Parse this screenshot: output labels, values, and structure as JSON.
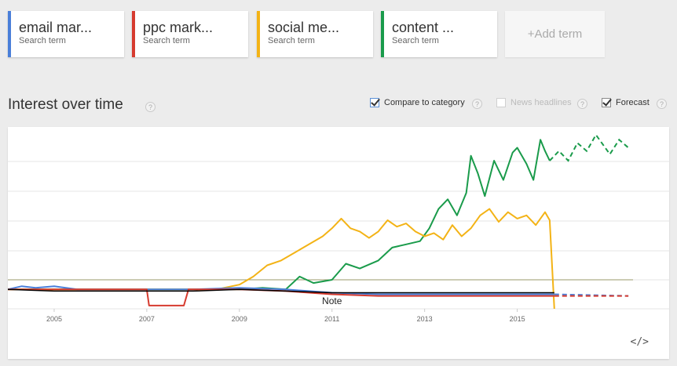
{
  "terms": [
    {
      "label": "email mar...",
      "sub": "Search term",
      "color": "#4a7fd9"
    },
    {
      "label": "ppc mark...",
      "sub": "Search term",
      "color": "#d63b2f"
    },
    {
      "label": "social me...",
      "sub": "Search term",
      "color": "#f3b316"
    },
    {
      "label": "content ...",
      "sub": "Search term",
      "color": "#1a9b4b"
    }
  ],
  "add_term": "+Add term",
  "section": {
    "title": "Interest over time",
    "help": "?"
  },
  "options": {
    "compare": {
      "label": "Compare to category",
      "checked": true
    },
    "news": {
      "label": "News headlines",
      "checked": false
    },
    "forecast": {
      "label": "Forecast",
      "checked": true
    }
  },
  "chart_data": {
    "type": "line",
    "x_ticks": [
      "2005",
      "2007",
      "2009",
      "2011",
      "2013",
      "2015"
    ],
    "annotation": "Note",
    "series": [
      {
        "color": "#1a9b4b",
        "points": [
          [
            2004.0,
            12
          ],
          [
            2006,
            12
          ],
          [
            2008,
            12
          ],
          [
            2009.0,
            12
          ],
          [
            2009.5,
            13
          ],
          [
            2010.0,
            12
          ],
          [
            2010.3,
            20
          ],
          [
            2010.6,
            16
          ],
          [
            2011.0,
            18
          ],
          [
            2011.3,
            28
          ],
          [
            2011.6,
            25
          ],
          [
            2012.0,
            30
          ],
          [
            2012.3,
            38
          ],
          [
            2012.6,
            40
          ],
          [
            2012.9,
            42
          ],
          [
            2013.1,
            50
          ],
          [
            2013.3,
            62
          ],
          [
            2013.5,
            68
          ],
          [
            2013.7,
            58
          ],
          [
            2013.9,
            72
          ],
          [
            2014.0,
            95
          ],
          [
            2014.15,
            84
          ],
          [
            2014.3,
            70
          ],
          [
            2014.5,
            92
          ],
          [
            2014.7,
            80
          ],
          [
            2014.9,
            97
          ],
          [
            2015.0,
            100
          ],
          [
            2015.2,
            90
          ],
          [
            2015.35,
            80
          ],
          [
            2015.5,
            105
          ],
          [
            2015.6,
            98
          ],
          [
            2015.7,
            92
          ]
        ],
        "forecast": [
          [
            2015.7,
            92
          ],
          [
            2015.9,
            98
          ],
          [
            2016.1,
            92
          ],
          [
            2016.3,
            103
          ],
          [
            2016.5,
            98
          ],
          [
            2016.7,
            108
          ],
          [
            2016.9,
            100
          ],
          [
            2017.0,
            96
          ],
          [
            2017.2,
            105
          ],
          [
            2017.4,
            100
          ]
        ]
      },
      {
        "color": "#f3b316",
        "points": [
          [
            2004.0,
            12
          ],
          [
            2008.5,
            12
          ],
          [
            2009.0,
            15
          ],
          [
            2009.3,
            20
          ],
          [
            2009.6,
            27
          ],
          [
            2009.9,
            30
          ],
          [
            2010.2,
            35
          ],
          [
            2010.5,
            40
          ],
          [
            2010.8,
            45
          ],
          [
            2011.0,
            50
          ],
          [
            2011.2,
            56
          ],
          [
            2011.4,
            50
          ],
          [
            2011.6,
            48
          ],
          [
            2011.8,
            44
          ],
          [
            2012.0,
            48
          ],
          [
            2012.2,
            55
          ],
          [
            2012.4,
            51
          ],
          [
            2012.6,
            53
          ],
          [
            2012.8,
            48
          ],
          [
            2013.0,
            45
          ],
          [
            2013.2,
            47
          ],
          [
            2013.4,
            43
          ],
          [
            2013.6,
            52
          ],
          [
            2013.8,
            45
          ],
          [
            2014.0,
            50
          ],
          [
            2014.2,
            58
          ],
          [
            2014.4,
            62
          ],
          [
            2014.6,
            54
          ],
          [
            2014.8,
            60
          ],
          [
            2015.0,
            56
          ],
          [
            2015.2,
            58
          ],
          [
            2015.4,
            52
          ],
          [
            2015.6,
            60
          ],
          [
            2015.7,
            55
          ],
          [
            2015.8,
            0
          ]
        ],
        "forecast": []
      },
      {
        "color": "#4a7fd9",
        "points": [
          [
            2004.0,
            12
          ],
          [
            2004.3,
            14
          ],
          [
            2004.6,
            13
          ],
          [
            2005.0,
            14
          ],
          [
            2005.5,
            12
          ],
          [
            2006,
            12
          ],
          [
            2007,
            12
          ],
          [
            2008,
            12
          ],
          [
            2009,
            13
          ],
          [
            2010,
            12
          ],
          [
            2011,
            10
          ],
          [
            2012,
            9
          ],
          [
            2013,
            9
          ],
          [
            2014,
            9
          ],
          [
            2015,
            9
          ],
          [
            2015.8,
            9
          ]
        ],
        "forecast": [
          [
            2015.8,
            9
          ],
          [
            2017.4,
            8
          ]
        ]
      },
      {
        "color": "#d63b2f",
        "points": [
          [
            2004.0,
            12
          ],
          [
            2006.0,
            12
          ],
          [
            2007.0,
            12
          ],
          [
            2007.05,
            2
          ],
          [
            2007.8,
            2
          ],
          [
            2007.9,
            12
          ],
          [
            2009.0,
            12
          ],
          [
            2010.0,
            11
          ],
          [
            2011.0,
            9
          ],
          [
            2012.0,
            8
          ],
          [
            2013.0,
            8
          ],
          [
            2014.0,
            8
          ],
          [
            2015.0,
            8
          ],
          [
            2015.8,
            8
          ]
        ],
        "forecast": [
          [
            2015.8,
            8
          ],
          [
            2017.4,
            8
          ]
        ]
      },
      {
        "color": "#000000",
        "points": [
          [
            2004.0,
            12
          ],
          [
            2005.0,
            11
          ],
          [
            2006.0,
            11
          ],
          [
            2007.0,
            11
          ],
          [
            2008.0,
            11
          ],
          [
            2009.0,
            12
          ],
          [
            2010.0,
            11
          ],
          [
            2011.0,
            10
          ],
          [
            2012.0,
            10
          ],
          [
            2013.0,
            10
          ],
          [
            2014.0,
            10
          ],
          [
            2015.0,
            10
          ],
          [
            2015.8,
            10
          ]
        ],
        "forecast": []
      }
    ],
    "xlim": [
      2004.0,
      2017.5
    ],
    "ylim": [
      0,
      110
    ],
    "grid": true
  },
  "embed_label": "</>"
}
